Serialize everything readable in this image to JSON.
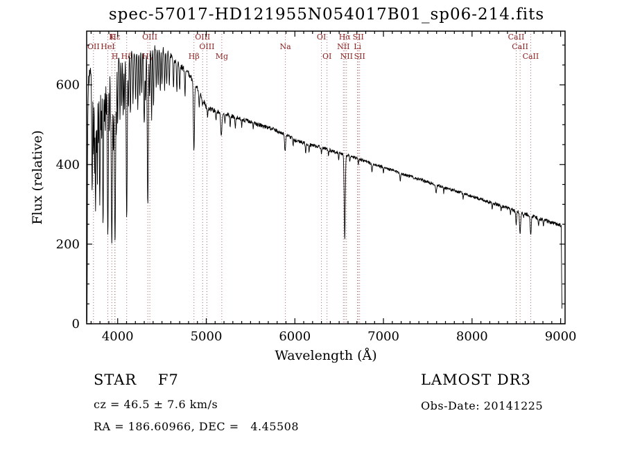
{
  "title": "spec-57017-HD121955N054017B01_sp06-214.fits",
  "footer": {
    "class_label": "STAR    F7",
    "cz": "cz = 46.5 ± 7.6 km/s",
    "ra_dec": "RA = 186.60966, DEC =   4.45508",
    "survey": "LAMOST DR3",
    "obs_date": "Obs-Date: 20141225"
  },
  "chart_data": {
    "type": "line",
    "title": "spec-57017-HD121955N054017B01_sp06-214.fits",
    "xlabel": "Wavelength (Å)",
    "ylabel": "Flux (relative)",
    "xlim": [
      3650,
      9050
    ],
    "ylim": [
      0,
      735
    ],
    "xticks": [
      4000,
      5000,
      6000,
      7000,
      8000,
      9000
    ],
    "yticks": [
      0,
      200,
      400,
      600
    ],
    "grid": false,
    "legend": "none",
    "line_color": "#000000",
    "marker_line_color": "#aa6666",
    "marker_label_color": "#8b2020",
    "continuum": [
      [
        3655,
        0
      ],
      [
        3657,
        150
      ],
      [
        3660,
        420
      ],
      [
        3665,
        560
      ],
      [
        3672,
        610
      ],
      [
        3685,
        630
      ],
      [
        3700,
        640
      ],
      [
        3750,
        648
      ],
      [
        3800,
        655
      ],
      [
        3850,
        659
      ],
      [
        3900,
        662
      ],
      [
        3950,
        665
      ],
      [
        4000,
        668
      ],
      [
        4100,
        674
      ],
      [
        4200,
        680
      ],
      [
        4300,
        686
      ],
      [
        4400,
        692
      ],
      [
        4450,
        692
      ],
      [
        4500,
        688
      ],
      [
        4550,
        681
      ],
      [
        4600,
        672
      ],
      [
        4650,
        661
      ],
      [
        4700,
        650
      ],
      [
        4750,
        639
      ],
      [
        4800,
        628
      ],
      [
        4850,
        610
      ],
      [
        4900,
        590
      ],
      [
        4950,
        568
      ],
      [
        5000,
        545
      ],
      [
        5100,
        535
      ],
      [
        5250,
        525
      ],
      [
        5400,
        514
      ],
      [
        5500,
        507
      ],
      [
        5650,
        496
      ],
      [
        5750,
        489
      ],
      [
        5850,
        480
      ],
      [
        5900,
        477
      ],
      [
        5950,
        470
      ],
      [
        6000,
        462
      ],
      [
        6150,
        450
      ],
      [
        6300,
        443
      ],
      [
        6450,
        432
      ],
      [
        6563,
        425
      ],
      [
        6700,
        415
      ],
      [
        6850,
        404
      ],
      [
        7000,
        393
      ],
      [
        7250,
        374
      ],
      [
        7500,
        356
      ],
      [
        7750,
        338
      ],
      [
        8000,
        320
      ],
      [
        8250,
        302
      ],
      [
        8500,
        283
      ],
      [
        8750,
        265
      ],
      [
        8900,
        254
      ],
      [
        9000,
        247
      ],
      [
        9006,
        244
      ],
      [
        9010,
        150
      ],
      [
        9014,
        60
      ],
      [
        9017,
        0
      ]
    ],
    "noise_profile": [
      [
        3655,
        16
      ],
      [
        3900,
        14
      ],
      [
        4200,
        11
      ],
      [
        4500,
        9
      ],
      [
        4800,
        8
      ],
      [
        5000,
        7
      ],
      [
        5300,
        6
      ],
      [
        5600,
        5
      ],
      [
        6000,
        5
      ],
      [
        6500,
        4
      ],
      [
        7000,
        4
      ],
      [
        7500,
        4
      ],
      [
        8000,
        4
      ],
      [
        8600,
        5
      ],
      [
        9000,
        5
      ]
    ],
    "absorption_lines": [
      [
        3712,
        330,
        5
      ],
      [
        3727,
        420,
        4
      ],
      [
        3740,
        370,
        4
      ],
      [
        3750,
        280,
        5
      ],
      [
        3762,
        430,
        4
      ],
      [
        3771,
        350,
        4
      ],
      [
        3784,
        450,
        4
      ],
      [
        3798,
        295,
        5
      ],
      [
        3812,
        480,
        4
      ],
      [
        3820,
        460,
        4
      ],
      [
        3835,
        245,
        5
      ],
      [
        3850,
        500,
        4
      ],
      [
        3860,
        480,
        4
      ],
      [
        3872,
        520,
        4
      ],
      [
        3889,
        220,
        6
      ],
      [
        3905,
        480,
        4
      ],
      [
        3920,
        510,
        4
      ],
      [
        3934,
        198,
        7
      ],
      [
        3952,
        430,
        5
      ],
      [
        3970,
        202,
        7
      ],
      [
        3985,
        470,
        4
      ],
      [
        4000,
        500,
        4
      ],
      [
        4026,
        510,
        4
      ],
      [
        4045,
        545,
        4
      ],
      [
        4063,
        520,
        4
      ],
      [
        4077,
        540,
        4
      ],
      [
        4102,
        265,
        6
      ],
      [
        4121,
        540,
        4
      ],
      [
        4144,
        525,
        4
      ],
      [
        4173,
        555,
        4
      ],
      [
        4202,
        560,
        4
      ],
      [
        4227,
        535,
        4
      ],
      [
        4250,
        570,
        4
      ],
      [
        4272,
        580,
        4
      ],
      [
        4300,
        505,
        6
      ],
      [
        4315,
        560,
        4
      ],
      [
        4340,
        295,
        6
      ],
      [
        4360,
        570,
        4
      ],
      [
        4383,
        510,
        4
      ],
      [
        4405,
        545,
        4
      ],
      [
        4435,
        590,
        4
      ],
      [
        4457,
        595,
        4
      ],
      [
        4481,
        585,
        4
      ],
      [
        4500,
        600,
        4
      ],
      [
        4530,
        585,
        4
      ],
      [
        4554,
        600,
        4
      ],
      [
        4583,
        595,
        4
      ],
      [
        4630,
        590,
        4
      ],
      [
        4668,
        580,
        4
      ],
      [
        4700,
        585,
        4
      ],
      [
        4760,
        570,
        4
      ],
      [
        4861,
        435,
        6
      ],
      [
        4920,
        545,
        4
      ],
      [
        4957,
        548,
        4
      ],
      [
        5015,
        520,
        4
      ],
      [
        5110,
        512,
        4
      ],
      [
        5170,
        472,
        7
      ],
      [
        5210,
        505,
        4
      ],
      [
        5270,
        492,
        4
      ],
      [
        5328,
        490,
        4
      ],
      [
        5400,
        494,
        3
      ],
      [
        5530,
        488,
        3
      ],
      [
        5890,
        432,
        6
      ],
      [
        5980,
        447,
        3
      ],
      [
        6122,
        428,
        4
      ],
      [
        6160,
        432,
        3
      ],
      [
        6300,
        428,
        3
      ],
      [
        6380,
        420,
        3
      ],
      [
        6495,
        412,
        3
      ],
      [
        6563,
        208,
        6
      ],
      [
        6620,
        405,
        3
      ],
      [
        6717,
        400,
        3
      ],
      [
        6870,
        382,
        5
      ],
      [
        7000,
        380,
        3
      ],
      [
        7190,
        358,
        4
      ],
      [
        7594,
        330,
        6
      ],
      [
        7680,
        328,
        3
      ],
      [
        7900,
        312,
        3
      ],
      [
        8227,
        288,
        3
      ],
      [
        8327,
        282,
        3
      ],
      [
        8434,
        272,
        3
      ],
      [
        8498,
        248,
        5
      ],
      [
        8542,
        226,
        6
      ],
      [
        8583,
        268,
        3
      ],
      [
        8662,
        224,
        6
      ],
      [
        8750,
        248,
        4
      ],
      [
        8806,
        244,
        3
      ]
    ],
    "spectral_lines": [
      {
        "wavelength": 3727,
        "label": "OII",
        "row": 2
      },
      {
        "wavelength": 3889,
        "label": "HeI",
        "row": 2
      },
      {
        "wavelength": 3934,
        "label": "K",
        "row": 1
      },
      {
        "wavelength": 3968,
        "label": "H",
        "row": 3
      },
      {
        "wavelength": 3970,
        "label": "Hε",
        "row": 1
      },
      {
        "wavelength": 4102,
        "label": "Hδ",
        "row": 3
      },
      {
        "wavelength": 4340,
        "label": "Hγ",
        "row": 3
      },
      {
        "wavelength": 4363,
        "label": "OIII",
        "row": 1
      },
      {
        "wavelength": 4861,
        "label": "Hβ",
        "row": 3
      },
      {
        "wavelength": 4959,
        "label": "OIII",
        "row": 1
      },
      {
        "wavelength": 5007,
        "label": "OIII",
        "row": 2
      },
      {
        "wavelength": 5175,
        "label": "Mg",
        "row": 3
      },
      {
        "wavelength": 5893,
        "label": "Na",
        "row": 2
      },
      {
        "wavelength": 6300,
        "label": "OI",
        "row": 1
      },
      {
        "wavelength": 6363,
        "label": "OI",
        "row": 3
      },
      {
        "wavelength": 6548,
        "label": "NII",
        "row": 2
      },
      {
        "wavelength": 6563,
        "label": "Hα",
        "row": 1
      },
      {
        "wavelength": 6583,
        "label": "NII",
        "row": 3
      },
      {
        "wavelength": 6707,
        "label": "Li",
        "row": 2
      },
      {
        "wavelength": 6716,
        "label": "SII",
        "row": 1
      },
      {
        "wavelength": 6731,
        "label": "SII",
        "row": 3
      },
      {
        "wavelength": 8498,
        "label": "CaII",
        "row": 1
      },
      {
        "wavelength": 8542,
        "label": "CaII",
        "row": 2
      },
      {
        "wavelength": 8662,
        "label": "CaII",
        "row": 3
      }
    ]
  }
}
